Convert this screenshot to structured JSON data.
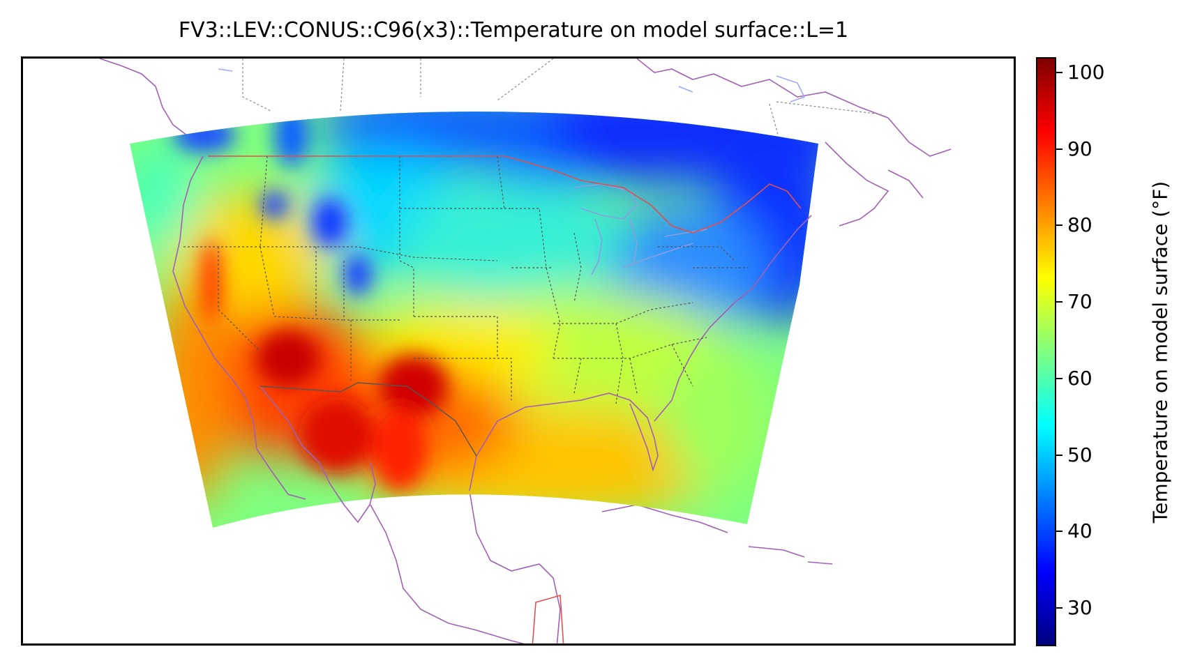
{
  "title": "FV3::LEV::CONUS::C96(x3)::Temperature on model surface::L=1",
  "colorbar": {
    "label": "Temperature on model surface (°F)",
    "min": 25,
    "max": 102,
    "ticks": [
      {
        "value": 30,
        "label": "30"
      },
      {
        "value": 40,
        "label": "40"
      },
      {
        "value": 50,
        "label": "50"
      },
      {
        "value": 60,
        "label": "60"
      },
      {
        "value": 70,
        "label": "70"
      },
      {
        "value": 80,
        "label": "80"
      },
      {
        "value": 90,
        "label": "90"
      },
      {
        "value": 100,
        "label": "100"
      }
    ],
    "colormap": "jet"
  },
  "colors": {
    "coastline": "#a15fb5",
    "lakes": "#9fa6ff",
    "country_border": "#e05050",
    "state_border": "#555555"
  }
}
